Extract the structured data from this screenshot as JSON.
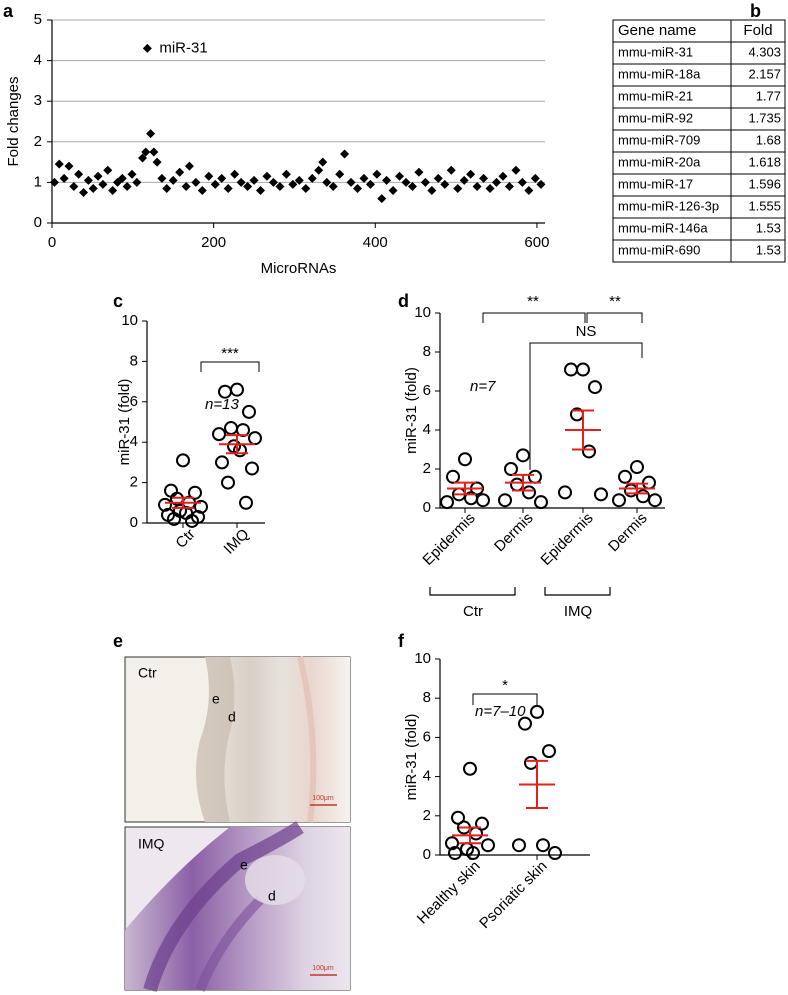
{
  "chart_data": [
    {
      "type": "scatter",
      "label": "a",
      "ylabel": "Fold changes",
      "xlabel": "MicroRNAs",
      "annotation": "miR-31",
      "x": [
        3,
        9,
        15,
        21,
        27,
        33,
        39,
        45,
        51,
        57,
        63,
        69,
        75,
        81,
        87,
        93,
        99,
        105,
        112,
        116,
        118,
        122,
        126,
        130,
        136,
        142,
        150,
        158,
        166,
        170,
        178,
        186,
        194,
        202,
        210,
        218,
        226,
        234,
        242,
        250,
        258,
        266,
        274,
        282,
        290,
        298,
        306,
        314,
        322,
        330,
        335,
        340,
        348,
        356,
        362,
        370,
        378,
        386,
        394,
        402,
        408,
        414,
        422,
        430,
        438,
        446,
        454,
        462,
        470,
        478,
        486,
        494,
        502,
        510,
        518,
        526,
        534,
        542,
        550,
        558,
        566,
        574,
        582,
        590,
        598,
        605
      ],
      "y": [
        1.0,
        1.45,
        1.1,
        1.4,
        0.9,
        1.2,
        0.75,
        1.05,
        0.85,
        1.15,
        0.95,
        1.3,
        0.8,
        1.0,
        1.1,
        0.9,
        1.2,
        1.0,
        1.6,
        1.75,
        4.3,
        2.2,
        1.75,
        1.5,
        1.1,
        0.85,
        1.05,
        1.25,
        0.9,
        1.4,
        1.0,
        0.8,
        1.15,
        0.95,
        1.1,
        0.85,
        1.2,
        1.0,
        0.9,
        1.05,
        0.8,
        1.15,
        1.0,
        0.9,
        1.2,
        0.95,
        1.05,
        0.85,
        1.1,
        1.3,
        1.5,
        1.0,
        0.9,
        1.2,
        1.7,
        1.0,
        0.85,
        1.1,
        0.95,
        1.2,
        0.6,
        1.05,
        0.8,
        1.15,
        1.0,
        0.9,
        1.25,
        1.0,
        0.8,
        1.1,
        0.95,
        1.3,
        0.85,
        1.05,
        1.2,
        0.9,
        1.1,
        0.85,
        1.0,
        1.15,
        0.9,
        1.3,
        1.0,
        0.8,
        1.1,
        0.95
      ],
      "xlim": [
        0,
        610
      ],
      "ylim": [
        0,
        5
      ],
      "xticks": [
        0,
        200,
        400,
        600
      ],
      "yticks": [
        0,
        1,
        2,
        3,
        4,
        5
      ],
      "grid": true,
      "color": "#000000"
    },
    {
      "type": "dot",
      "label": "c",
      "ylabel": "miR-31 (fold)",
      "categories": [
        "Ctr",
        "IMQ"
      ],
      "points": [
        [
          3.1,
          1.6,
          1.5,
          1.2,
          1.0,
          0.9,
          0.8,
          0.6,
          0.5,
          0.4,
          0.3,
          0.2,
          0.1
        ],
        [
          6.6,
          6.5,
          5.5,
          4.7,
          4.6,
          4.4,
          4.2,
          3.8,
          3.6,
          3.0,
          2.7,
          2.0,
          1.0
        ]
      ],
      "mean": [
        1.0,
        3.9
      ],
      "sem": [
        0.25,
        0.45
      ],
      "ylim": [
        0,
        10
      ],
      "yticks": [
        0,
        2,
        4,
        6,
        8,
        10
      ],
      "significance": [
        "***"
      ],
      "n_label": "n=13",
      "mean_color": "#e3211c"
    },
    {
      "type": "dot",
      "label": "d",
      "ylabel": "miR-31 (fold)",
      "categories": [
        "Epidermis",
        "Dermis",
        "Epidermis",
        "Dermis"
      ],
      "groups": [
        "Ctr",
        "IMQ"
      ],
      "points": [
        [
          2.5,
          1.6,
          1.0,
          0.7,
          0.5,
          0.3,
          0.4
        ],
        [
          2.7,
          2.0,
          1.6,
          1.2,
          0.8,
          0.4,
          0.3
        ],
        [
          7.1,
          7.1,
          6.2,
          4.8,
          2.9,
          0.8,
          0.7
        ],
        [
          2.1,
          1.6,
          1.3,
          0.9,
          0.6,
          0.4,
          0.4
        ]
      ],
      "mean": [
        1.0,
        1.3,
        4.0,
        1.0
      ],
      "sem": [
        0.3,
        0.4,
        1.0,
        0.25
      ],
      "ylim": [
        0,
        10
      ],
      "yticks": [
        0,
        2,
        4,
        6,
        8,
        10
      ],
      "significance": [
        "**",
        "NS",
        "**"
      ],
      "n_label": "n=7",
      "mean_color": "#e3211c"
    },
    {
      "type": "dot",
      "label": "f",
      "ylabel": "miR-31 (fold)",
      "categories": [
        "Healthy skin",
        "Psoriatic skin"
      ],
      "points": [
        [
          4.4,
          1.9,
          1.6,
          1.4,
          1.1,
          0.6,
          0.5,
          0.3,
          0.1,
          0.1
        ],
        [
          7.3,
          6.7,
          5.3,
          4.7,
          0.5,
          0.5,
          0.1
        ]
      ],
      "mean": [
        1.0,
        3.6
      ],
      "sem": [
        0.4,
        1.2
      ],
      "ylim": [
        0,
        10
      ],
      "yticks": [
        0,
        2,
        4,
        6,
        8,
        10
      ],
      "significance": [
        "*"
      ],
      "n_label": "n=7–10",
      "mean_color": "#e3211c"
    }
  ],
  "table": {
    "label": "b",
    "header": [
      "Gene name",
      "Fold"
    ],
    "rows": [
      [
        "mmu-miR-31",
        4.303
      ],
      [
        "mmu-miR-18a",
        2.157
      ],
      [
        "mmu-miR-21",
        1.77
      ],
      [
        "mmu-miR-92",
        1.735
      ],
      [
        "mmu-miR-709",
        1.68
      ],
      [
        "mmu-miR-20a",
        1.618
      ],
      [
        "mmu-miR-17",
        1.596
      ],
      [
        "mmu-miR-126-3p",
        1.555
      ],
      [
        "mmu-miR-146a",
        1.53
      ],
      [
        "mmu-miR-690",
        1.53
      ]
    ]
  },
  "images": {
    "label": "e",
    "panels": [
      {
        "title": "Ctr",
        "marks": [
          "e",
          "d"
        ],
        "scale": "100μm"
      },
      {
        "title": "IMQ",
        "marks": [
          "e",
          "d"
        ],
        "scale": "100μm"
      }
    ]
  }
}
